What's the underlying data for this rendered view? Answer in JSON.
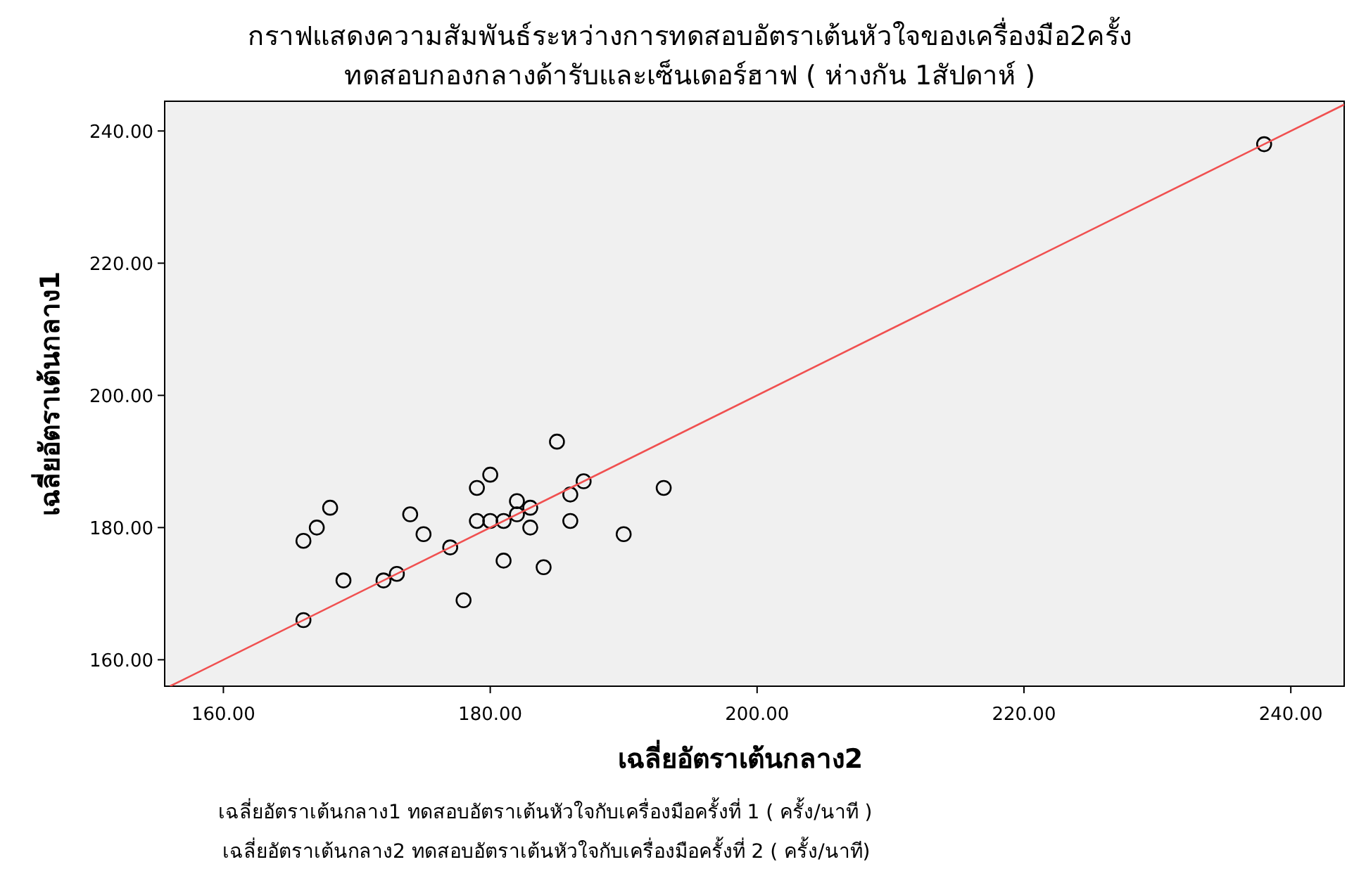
{
  "chart_data": {
    "type": "scatter",
    "title": "กราฟแสดงความสัมพันธ์ระหว่างการทดสอบอัตราเต้นหัวใจของเครื่องมือ2ครั้ง\nทดสอบกองกลางด้ารับและเซ็นเดอร์ฮาฟ ( ห่างกัน 1สัปดาห์ )",
    "xlabel": "เฉลี่ยอัตราเต้นกลาง2",
    "ylabel": "เฉลี่ยอัตราเต้นกลาง1",
    "annotations": [
      "เฉลี่ยอัตราเต้นกลาง1   ทดสอบอัตราเต้นหัวใจกับเครื่องมือครั้งที่ 1 ( ครั้ง/นาที )",
      "เฉลี่ยอัตราเต้นกลาง2   ทดสอบอัตราเต้นหัวใจกับเครื่องมือครั้งที่ 2 ( ครั้ง/นาที)"
    ],
    "xlim": [
      155.6,
      244
    ],
    "ylim": [
      156,
      244.5
    ],
    "xticks": [
      {
        "value": 160,
        "label": "160.00"
      },
      {
        "value": 180,
        "label": "180.00"
      },
      {
        "value": 200,
        "label": "200.00"
      },
      {
        "value": 220,
        "label": "220.00"
      },
      {
        "value": 240,
        "label": "240.00"
      }
    ],
    "yticks": [
      {
        "value": 160,
        "label": "160.00"
      },
      {
        "value": 180,
        "label": "180.00"
      },
      {
        "value": 200,
        "label": "200.00"
      },
      {
        "value": 220,
        "label": "220.00"
      },
      {
        "value": 240,
        "label": "240.00"
      }
    ],
    "grid": false,
    "series": [
      {
        "marker": "circle",
        "color": "#000000",
        "x": [
          166,
          167,
          168,
          169,
          166,
          172,
          173,
          174,
          175,
          177,
          178,
          179,
          180,
          179,
          180,
          181,
          181,
          182,
          182,
          183,
          183,
          184,
          185,
          186,
          186,
          187,
          190,
          193,
          238
        ],
        "values": [
          178,
          180,
          183,
          172,
          166,
          172,
          173,
          182,
          179,
          177,
          169,
          186,
          188,
          181,
          181,
          181,
          175,
          184,
          182,
          183,
          180,
          174,
          193,
          185,
          181,
          187,
          179,
          186,
          238
        ]
      },
      {
        "type": "line",
        "color": "#f05050",
        "marker": "none",
        "x": [
          156,
          244
        ],
        "values": [
          156,
          244
        ]
      }
    ]
  }
}
